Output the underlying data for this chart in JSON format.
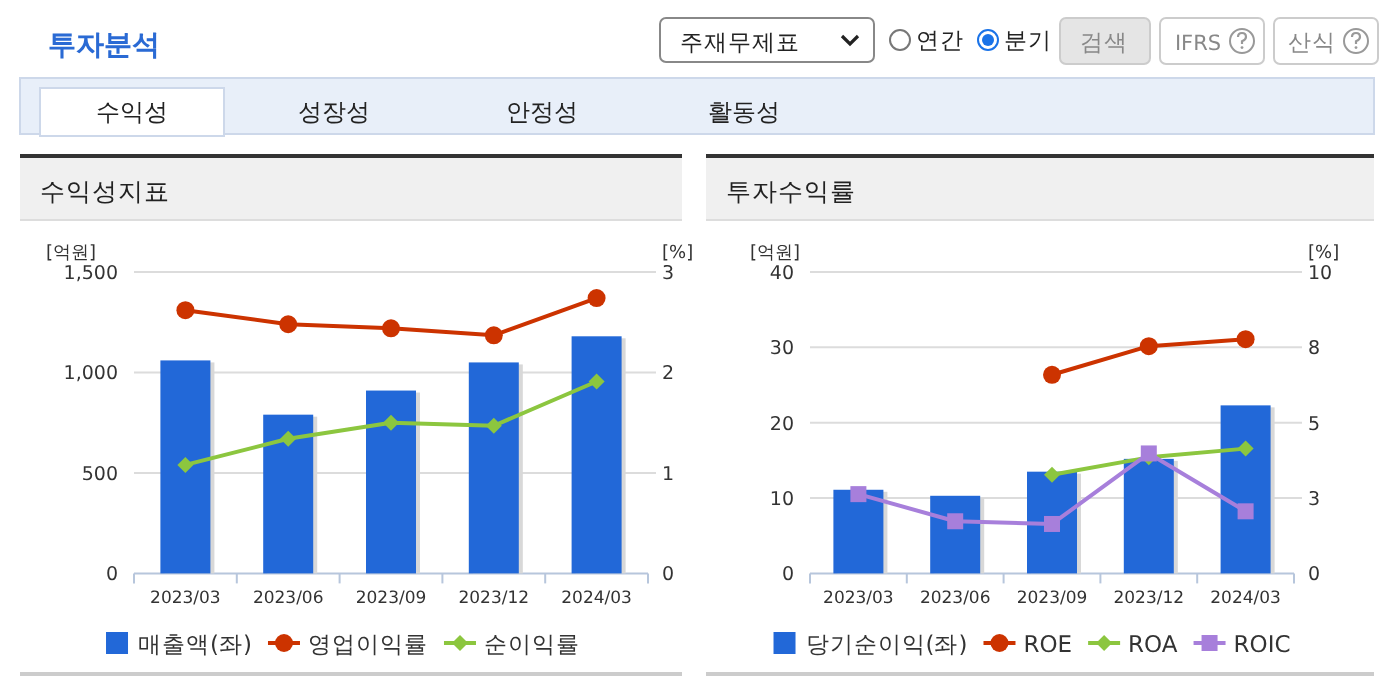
{
  "chart_data": [
    {
      "type": "other",
      "title": "투자분석",
      "annotations": [
        "주재무제표",
        "연간",
        "분기",
        "검색",
        "IFRS",
        "산식",
        "수익성",
        "성장성",
        "안정성",
        "활동성"
      ]
    },
    {
      "type": "bar",
      "title": "수익성지표",
      "categories": [
        "2023/03",
        "2023/06",
        "2023/09",
        "2023/12",
        "2024/03"
      ],
      "ylabel": "[억원]",
      "y2label": "[%]",
      "ylim": [
        0,
        1500
      ],
      "yticks": [
        0,
        500,
        {
          "value": 1000,
          "label": "1,000"
        },
        {
          "value": 1500,
          "label": "1,500"
        }
      ],
      "y2lim": [
        0,
        3
      ],
      "y2ticks": [
        0,
        1,
        2,
        3
      ],
      "grid": "y",
      "legend": "bottom",
      "series": [
        {
          "name": "매출액(좌)",
          "type": "bar",
          "color": "#2268d8",
          "values": [
            1060,
            790,
            910,
            1050,
            1180
          ]
        },
        {
          "name": "영업이익률",
          "type": "line",
          "axis": "y2",
          "marker": "circle",
          "color": "#cc3300",
          "values": [
            2.62,
            2.48,
            2.44,
            2.37,
            2.74
          ]
        },
        {
          "name": "순이익률",
          "type": "line",
          "axis": "y2",
          "marker": "diamond",
          "color": "#8cc63f",
          "values": [
            1.08,
            1.34,
            1.5,
            1.47,
            1.91
          ]
        }
      ]
    },
    {
      "type": "bar",
      "title": "투자수익률",
      "categories": [
        "2023/03",
        "2023/06",
        "2023/09",
        "2023/12",
        "2024/03"
      ],
      "ylabel": "[억원]",
      "y2label": "[%]",
      "ylim": [
        0,
        40
      ],
      "yticks": [
        0,
        10,
        20,
        30,
        40
      ],
      "y2lim": [
        0,
        10
      ],
      "y2ticks": [
        0,
        {
          "value": 2.5,
          "label": "3"
        },
        5,
        {
          "value": 7.5,
          "label": "8"
        },
        10
      ],
      "grid": "y",
      "legend": "bottom",
      "series": [
        {
          "name": "당기순이익(좌)",
          "type": "bar",
          "color": "#2268d8",
          "values": [
            11.1,
            10.3,
            13.5,
            15.2,
            22.3
          ]
        },
        {
          "name": "ROE",
          "type": "line",
          "axis": "y2",
          "marker": "circle",
          "color": "#cc3300",
          "values": [
            null,
            null,
            6.59,
            7.54,
            7.77
          ]
        },
        {
          "name": "ROA",
          "type": "line",
          "axis": "y2",
          "marker": "diamond",
          "color": "#8cc63f",
          "values": [
            null,
            null,
            3.27,
            3.85,
            4.14
          ]
        },
        {
          "name": "ROIC",
          "type": "line",
          "axis": "y2",
          "marker": "square",
          "color": "#a77fdb",
          "values": [
            2.63,
            1.73,
            1.64,
            3.98,
            2.06
          ]
        }
      ]
    }
  ]
}
